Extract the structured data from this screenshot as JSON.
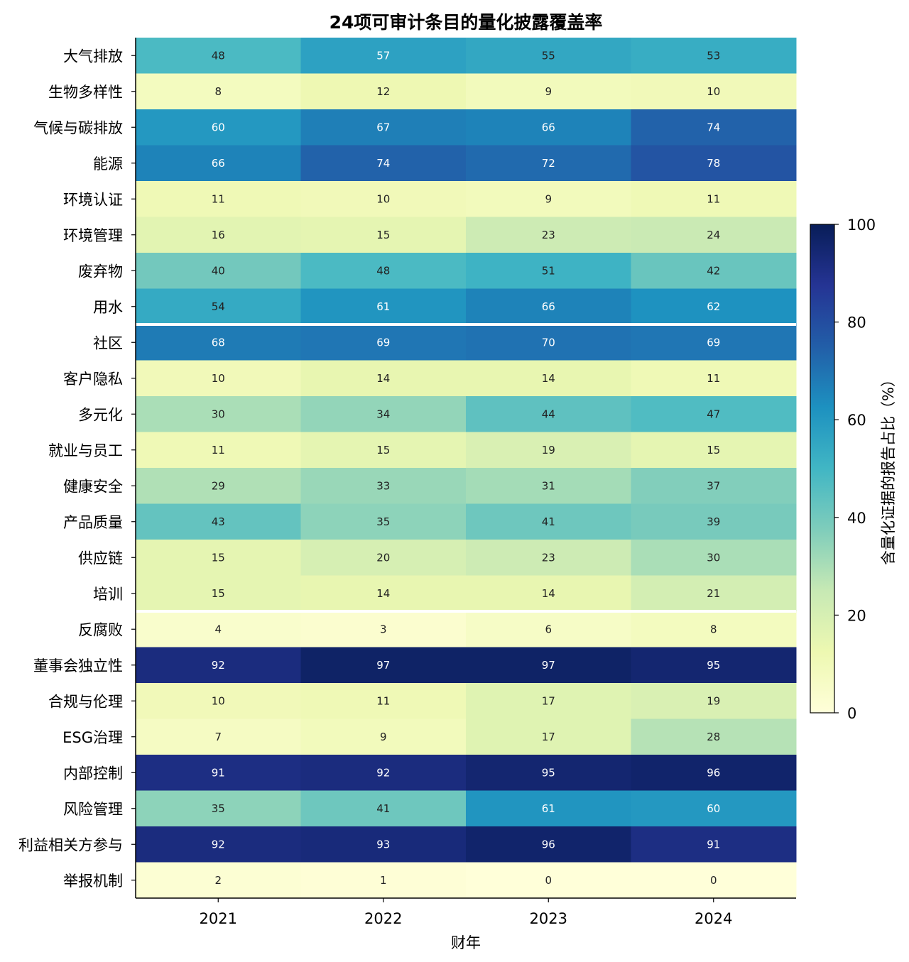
{
  "chart_data": {
    "type": "heatmap",
    "title": "24项可审计条目的量化披露覆盖率",
    "xlabel": "财年",
    "x": [
      "2021",
      "2022",
      "2023",
      "2024"
    ],
    "rows": [
      "大气排放",
      "生物多样性",
      "气候与碳排放",
      "能源",
      "环境认证",
      "环境管理",
      "废弃物",
      "用水",
      "社区",
      "客户隐私",
      "多元化",
      "就业与员工",
      "健康安全",
      "产品质量",
      "供应链",
      "培训",
      "反腐败",
      "董事会独立性",
      "合规与伦理",
      "ESG治理",
      "内部控制",
      "风险管理",
      "利益相关方参与",
      "举报机制"
    ],
    "values": [
      [
        48,
        57,
        55,
        53
      ],
      [
        8,
        12,
        9,
        10
      ],
      [
        60,
        67,
        66,
        74
      ],
      [
        66,
        74,
        72,
        78
      ],
      [
        11,
        10,
        9,
        11
      ],
      [
        16,
        15,
        23,
        24
      ],
      [
        40,
        48,
        51,
        42
      ],
      [
        54,
        61,
        66,
        62
      ],
      [
        68,
        69,
        70,
        69
      ],
      [
        10,
        14,
        14,
        11
      ],
      [
        30,
        34,
        44,
        47
      ],
      [
        11,
        15,
        19,
        15
      ],
      [
        29,
        33,
        31,
        37
      ],
      [
        43,
        35,
        41,
        39
      ],
      [
        15,
        20,
        23,
        30
      ],
      [
        15,
        14,
        14,
        21
      ],
      [
        4,
        3,
        6,
        8
      ],
      [
        92,
        97,
        97,
        95
      ],
      [
        10,
        11,
        17,
        19
      ],
      [
        7,
        9,
        17,
        28
      ],
      [
        91,
        92,
        95,
        96
      ],
      [
        35,
        41,
        61,
        60
      ],
      [
        92,
        93,
        96,
        91
      ],
      [
        2,
        1,
        0,
        0
      ]
    ],
    "group_separators_after_rows": [
      8,
      16
    ],
    "colorbar": {
      "label": "含量化证据的报告占比（%）",
      "range": [
        0,
        100
      ],
      "ticks": [
        "0",
        "20",
        "40",
        "60",
        "80",
        "100"
      ],
      "colormap": "YlGnBu"
    },
    "grid": false
  }
}
